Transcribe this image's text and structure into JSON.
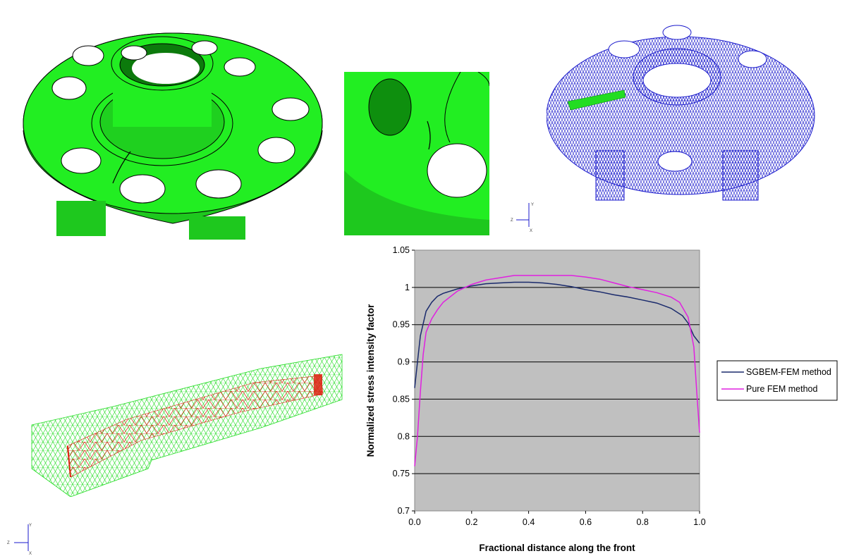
{
  "colors": {
    "solid_green": "#22ee22",
    "mesh_blue": "#1a1acc",
    "mesh_green": "#22dd22",
    "mesh_red": "#dd2211",
    "plot_area": "#c0c0c0",
    "series1": "#1a2a6c",
    "series2": "#e020e0"
  },
  "axis_triad_top": {
    "z": "Z",
    "y": "Y",
    "x": "X"
  },
  "axis_triad_bottom": {
    "z": "Z",
    "y": "Y",
    "x": "X"
  },
  "chart_data": {
    "type": "line",
    "title": "",
    "xlabel": "Fractional distance along the front",
    "ylabel": "Normalized stress intensity factor",
    "xlim": [
      0.0,
      1.0
    ],
    "ylim": [
      0.7,
      1.05
    ],
    "xticks": [
      "0.0",
      "0.2",
      "0.4",
      "0.6",
      "0.8",
      "1.0"
    ],
    "yticks": [
      "0.7",
      "0.75",
      "0.8",
      "0.85",
      "0.9",
      "0.95",
      "1",
      "1.05"
    ],
    "grid": "horizontal",
    "legend_position": "right",
    "series": [
      {
        "name": "SGBEM-FEM method",
        "x": [
          0.0,
          0.01,
          0.02,
          0.04,
          0.06,
          0.08,
          0.1,
          0.15,
          0.2,
          0.25,
          0.3,
          0.35,
          0.4,
          0.45,
          0.5,
          0.55,
          0.6,
          0.65,
          0.7,
          0.75,
          0.8,
          0.85,
          0.9,
          0.94,
          0.96,
          0.98,
          1.0
        ],
        "y": [
          0.865,
          0.9,
          0.935,
          0.968,
          0.98,
          0.988,
          0.992,
          0.998,
          1.002,
          1.005,
          1.006,
          1.007,
          1.007,
          1.006,
          1.004,
          1.001,
          0.997,
          0.994,
          0.99,
          0.987,
          0.983,
          0.979,
          0.972,
          0.962,
          0.952,
          0.935,
          0.925
        ]
      },
      {
        "name": "Pure FEM method",
        "x": [
          0.0,
          0.01,
          0.02,
          0.03,
          0.04,
          0.06,
          0.08,
          0.1,
          0.15,
          0.2,
          0.25,
          0.3,
          0.35,
          0.4,
          0.45,
          0.5,
          0.55,
          0.6,
          0.65,
          0.7,
          0.75,
          0.8,
          0.85,
          0.9,
          0.93,
          0.96,
          0.98,
          0.99,
          1.0
        ],
        "y": [
          0.76,
          0.8,
          0.86,
          0.91,
          0.94,
          0.958,
          0.97,
          0.98,
          0.995,
          1.004,
          1.01,
          1.013,
          1.016,
          1.016,
          1.016,
          1.016,
          1.016,
          1.014,
          1.011,
          1.006,
          1.001,
          0.997,
          0.993,
          0.987,
          0.98,
          0.96,
          0.92,
          0.86,
          0.805
        ]
      }
    ]
  }
}
